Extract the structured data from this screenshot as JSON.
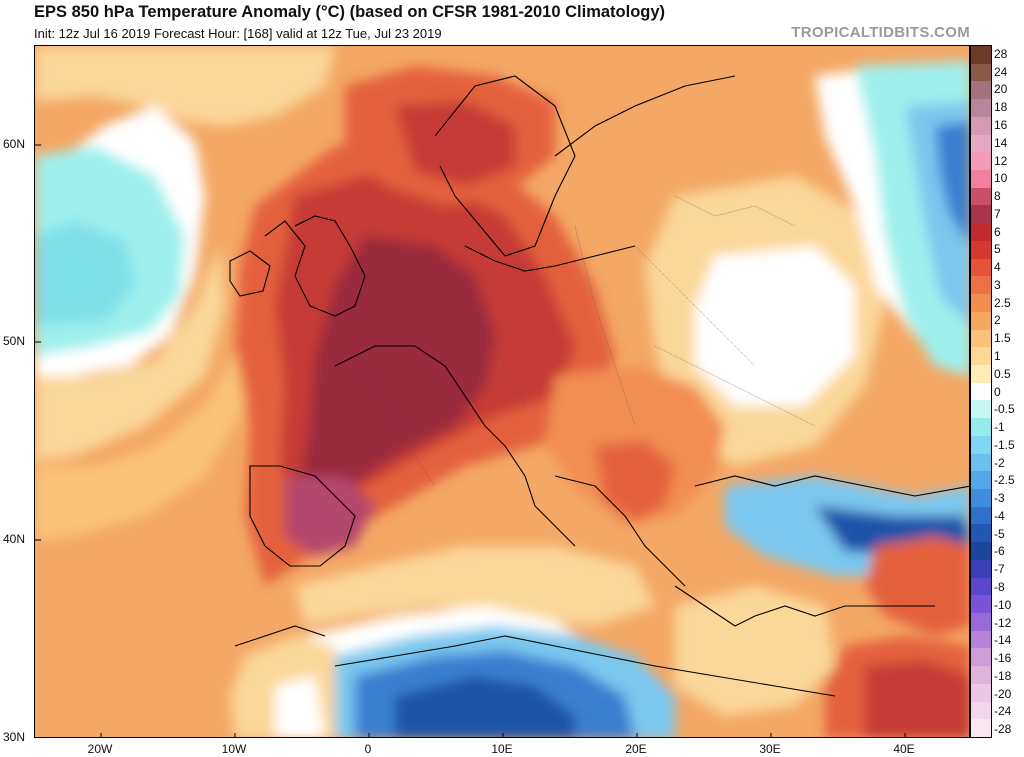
{
  "header": {
    "title": "EPS 850 hPa Temperature Anomaly (°C) (based on CFSR 1981-2010 Climatology)",
    "subtitle": "Init: 12z Jul 16 2019   Forecast Hour: [168]   valid at 12z Tue, Jul 23 2019",
    "brand": "TROPICALTIDBITS.COM"
  },
  "map": {
    "lat_labels": [
      "60N",
      "50N",
      "40N",
      "30N"
    ],
    "lon_labels": [
      "20W",
      "10W",
      "0",
      "10E",
      "20E",
      "30E",
      "40E"
    ],
    "ocean_color": "#f3a866",
    "anomaly_palette": {
      "strong_warm": "#9a2c3e",
      "warm_core": "#c63b35",
      "warm": "#e4613c",
      "mild_warm": "#f4a261",
      "slight_warm": "#fbd79a",
      "neutral": "#ffffff",
      "slight_cool": "#9ff0ec",
      "cool": "#7cc7ef",
      "cold": "#3a7fd0",
      "very_cold": "#1f52a8"
    }
  },
  "colorbar": {
    "levels": [
      {
        "label": "28",
        "color": "#6b3b2a"
      },
      {
        "label": "24",
        "color": "#8a5a48"
      },
      {
        "label": "20",
        "color": "#a4727e"
      },
      {
        "label": "18",
        "color": "#b7869a"
      },
      {
        "label": "16",
        "color": "#d59ab4"
      },
      {
        "label": "14",
        "color": "#e6a8c5"
      },
      {
        "label": "12",
        "color": "#f39ab8"
      },
      {
        "label": "10",
        "color": "#f07fa0"
      },
      {
        "label": "8",
        "color": "#c9506a"
      },
      {
        "label": "7",
        "color": "#a8344d"
      },
      {
        "label": "6",
        "color": "#c12b30"
      },
      {
        "label": "5",
        "color": "#d6382f"
      },
      {
        "label": "4",
        "color": "#e5533a"
      },
      {
        "label": "3",
        "color": "#ed7147"
      },
      {
        "label": "2.5",
        "color": "#f28d52"
      },
      {
        "label": "2",
        "color": "#f6a861"
      },
      {
        "label": "1.5",
        "color": "#f9c179"
      },
      {
        "label": "1",
        "color": "#fbd896"
      },
      {
        "label": "0.5",
        "color": "#fdebb8"
      },
      {
        "label": "0",
        "color": "#ffffff"
      },
      {
        "label": "-0.5",
        "color": "#c6f7f3"
      },
      {
        "label": "-1",
        "color": "#95eaee"
      },
      {
        "label": "-1.5",
        "color": "#7fd8f2"
      },
      {
        "label": "-2",
        "color": "#6cc0ef"
      },
      {
        "label": "-2.5",
        "color": "#54a6e8"
      },
      {
        "label": "-3",
        "color": "#3f8ede"
      },
      {
        "label": "-4",
        "color": "#2f71c9"
      },
      {
        "label": "-5",
        "color": "#2257b3"
      },
      {
        "label": "-6",
        "color": "#1d459c"
      },
      {
        "label": "-7",
        "color": "#3a3fb6"
      },
      {
        "label": "-8",
        "color": "#5b47cc"
      },
      {
        "label": "-10",
        "color": "#7b54d6"
      },
      {
        "label": "-12",
        "color": "#9a6ad9"
      },
      {
        "label": "-14",
        "color": "#b683d9"
      },
      {
        "label": "-16",
        "color": "#cf9bd8"
      },
      {
        "label": "-18",
        "color": "#e0b3dc"
      },
      {
        "label": "-20",
        "color": "#ebc7e3"
      },
      {
        "label": "-24",
        "color": "#f2d7ea"
      },
      {
        "label": "-28",
        "color": "#f8e6f1"
      }
    ]
  }
}
